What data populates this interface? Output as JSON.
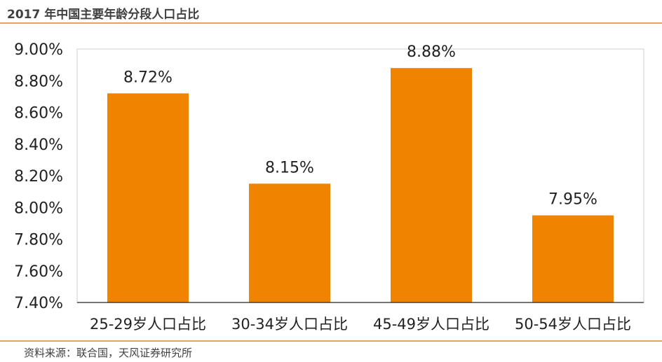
{
  "header": {
    "title": "2017 年中国主要年龄分段人口占比"
  },
  "footer": {
    "source": "资料来源：联合国，天风证券研究所"
  },
  "colors": {
    "bar": "#F08300",
    "rule": "#E9A35F",
    "text": "#404040",
    "axis": "#222222",
    "grid": "#cfcfcf"
  },
  "chart_data": {
    "type": "bar",
    "title": "2017 年中国主要年龄分段人口占比",
    "categories": [
      "25-29岁人口占比",
      "30-34岁人口占比",
      "45-49岁人口占比",
      "50-54岁人口占比"
    ],
    "values": [
      8.72,
      8.15,
      8.88,
      7.95
    ],
    "data_labels": [
      "8.72%",
      "8.15%",
      "8.88%",
      "7.95%"
    ],
    "yticks": [
      7.4,
      7.6,
      7.8,
      8.0,
      8.2,
      8.4,
      8.6,
      8.8,
      9.0
    ],
    "ytick_labels": [
      "7.40%",
      "7.60%",
      "7.80%",
      "8.00%",
      "8.20%",
      "8.40%",
      "8.60%",
      "8.80%",
      "9.00%"
    ],
    "ylim": [
      7.4,
      9.0
    ],
    "xlabel": "",
    "ylabel": "",
    "grid": false,
    "legend": "none"
  }
}
